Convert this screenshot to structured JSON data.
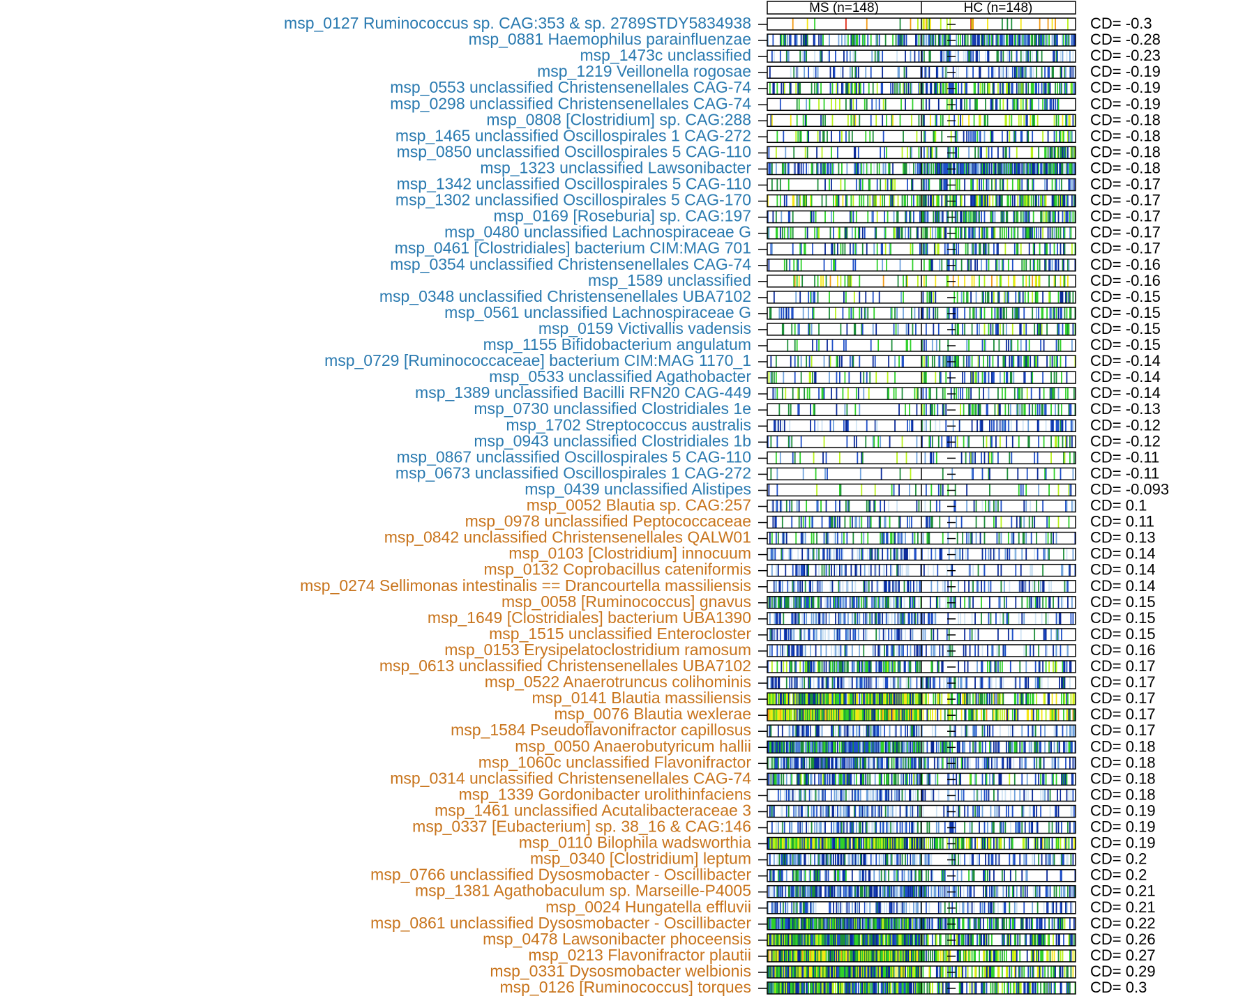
{
  "chart_data": {
    "type": "heatmap",
    "group_labels": [
      "MS (n=148)",
      "HC (n=148)"
    ],
    "value_prefix": "CD= ",
    "colors": {
      "negative_label": "#2a7ab0",
      "positive_label": "#c8741c",
      "scale": [
        "#ffffff",
        "#cfe3f4",
        "#6fa2dc",
        "#1f4fc8",
        "#0a2a9a",
        "#1d8f3a",
        "#2fd12a",
        "#b8f21a",
        "#f5e614",
        "#f29a14",
        "#e02a14"
      ]
    },
    "rows": [
      {
        "name": "msp_0127 Ruminococcus sp. CAG:353 & sp. 2789STDY5834938",
        "cd": "-0.3",
        "density": 0.12,
        "level": 0.7
      },
      {
        "name": "msp_0881 Haemophilus parainfluenzae",
        "cd": "-0.28",
        "density": 0.72,
        "level": 0.4
      },
      {
        "name": "msp_1473c unclassified",
        "cd": "-0.23",
        "density": 0.45,
        "level": 0.32
      },
      {
        "name": "msp_1219 Veillonella rogosae",
        "cd": "-0.19",
        "density": 0.42,
        "level": 0.34
      },
      {
        "name": "msp_0553 unclassified Christensenellales CAG-74",
        "cd": "-0.19",
        "density": 0.52,
        "level": 0.48
      },
      {
        "name": "msp_0298 unclassified Christensenellales CAG-74",
        "cd": "-0.19",
        "density": 0.35,
        "level": 0.46
      },
      {
        "name": "msp_0808 [Clostridium] sp. CAG:288",
        "cd": "-0.18",
        "density": 0.3,
        "level": 0.55
      },
      {
        "name": "msp_1465 unclassified Oscillospirales 1 CAG-272",
        "cd": "-0.18",
        "density": 0.3,
        "level": 0.46
      },
      {
        "name": "msp_0850 unclassified Oscillospirales 5 CAG-110",
        "cd": "-0.18",
        "density": 0.28,
        "level": 0.46
      },
      {
        "name": "msp_1323 unclassified Lawsonibacter",
        "cd": "-0.18",
        "density": 0.92,
        "level": 0.38
      },
      {
        "name": "msp_1342 unclassified Oscillospirales 5 CAG-110",
        "cd": "-0.17",
        "density": 0.38,
        "level": 0.46
      },
      {
        "name": "msp_1302 unclassified Oscillospirales 5 CAG-170",
        "cd": "-0.17",
        "density": 0.65,
        "level": 0.55
      },
      {
        "name": "msp_0169 [Roseburia] sp. CAG:197",
        "cd": "-0.17",
        "density": 0.52,
        "level": 0.44
      },
      {
        "name": "msp_0480 unclassified Lachnospiraceae G",
        "cd": "-0.17",
        "density": 0.52,
        "level": 0.46
      },
      {
        "name": "msp_0461 [Clostridiales] bacterium CIM:MAG 701",
        "cd": "-0.17",
        "density": 0.38,
        "level": 0.45
      },
      {
        "name": "msp_0354 unclassified Christensenellales CAG-74",
        "cd": "-0.16",
        "density": 0.26,
        "level": 0.44
      },
      {
        "name": "msp_1589 unclassified",
        "cd": "-0.16",
        "density": 0.3,
        "level": 0.68
      },
      {
        "name": "msp_0348 unclassified Christensenellales UBA7102",
        "cd": "-0.15",
        "density": 0.32,
        "level": 0.46
      },
      {
        "name": "msp_0561 unclassified Lachnospiraceae G",
        "cd": "-0.15",
        "density": 0.42,
        "level": 0.44
      },
      {
        "name": "msp_0159 Victivallis vadensis",
        "cd": "-0.15",
        "density": 0.28,
        "level": 0.46
      },
      {
        "name": "msp_1155 Bifidobacterium angulatum",
        "cd": "-0.15",
        "density": 0.16,
        "level": 0.4
      },
      {
        "name": "msp_0729 [Ruminococcaceae] bacterium CIM:MAG 1170_1",
        "cd": "-0.14",
        "density": 0.38,
        "level": 0.44
      },
      {
        "name": "msp_0533 unclassified Agathobacter",
        "cd": "-0.14",
        "density": 0.26,
        "level": 0.46
      },
      {
        "name": "msp_1389 unclassified Bacilli RFN20 CAG-449",
        "cd": "-0.14",
        "density": 0.3,
        "level": 0.44
      },
      {
        "name": "msp_0730 unclassified Clostridiales 1e",
        "cd": "-0.13",
        "density": 0.3,
        "level": 0.44
      },
      {
        "name": "msp_1702 Streptococcus australis",
        "cd": "-0.12",
        "density": 0.42,
        "level": 0.26
      },
      {
        "name": "msp_0943 unclassified Clostridiales 1b",
        "cd": "-0.12",
        "density": 0.24,
        "level": 0.46
      },
      {
        "name": "msp_0867 unclassified Oscillospirales 5 CAG-110",
        "cd": "-0.11",
        "density": 0.16,
        "level": 0.44
      },
      {
        "name": "msp_0673 unclassified Oscillospirales 1 CAG-272",
        "cd": "-0.11",
        "density": 0.14,
        "level": 0.42
      },
      {
        "name": "msp_0439 unclassified Alistipes",
        "cd": "-0.093",
        "density": 0.14,
        "level": 0.44
      },
      {
        "name": "msp_0052 Blautia sp. CAG:257",
        "cd": "0.1",
        "density": 0.26,
        "level": 0.36
      },
      {
        "name": "msp_0978 unclassified Peptococcaceae",
        "cd": "0.11",
        "density": 0.3,
        "level": 0.42
      },
      {
        "name": "msp_0842 unclassified Christensenellales QALW01",
        "cd": "0.13",
        "density": 0.34,
        "level": 0.4
      },
      {
        "name": "msp_0103 [Clostridium] innocuum",
        "cd": "0.14",
        "density": 0.52,
        "level": 0.26
      },
      {
        "name": "msp_0132 Coprobacillus cateniformis",
        "cd": "0.14",
        "density": 0.42,
        "level": 0.25
      },
      {
        "name": "msp_0274 Sellimonas intestinalis == Drancourtella massiliensis",
        "cd": "0.14",
        "density": 0.46,
        "level": 0.28
      },
      {
        "name": "msp_0058 [Ruminococcus] gnavus",
        "cd": "0.15",
        "density": 0.62,
        "level": 0.38
      },
      {
        "name": "msp_1649 [Clostridiales] bacterium UBA1390",
        "cd": "0.15",
        "density": 0.56,
        "level": 0.28
      },
      {
        "name": "msp_1515 unclassified Enterocloster",
        "cd": "0.15",
        "density": 0.46,
        "level": 0.26
      },
      {
        "name": "msp_0153 Erysipelatoclostridium ramosum",
        "cd": "0.16",
        "density": 0.5,
        "level": 0.26
      },
      {
        "name": "msp_0613 unclassified Christensenellales UBA7102",
        "cd": "0.17",
        "density": 0.55,
        "level": 0.46
      },
      {
        "name": "msp_0522 Anaerotruncus colihominis",
        "cd": "0.17",
        "density": 0.56,
        "level": 0.28
      },
      {
        "name": "msp_0141 Blautia massiliensis",
        "cd": "0.17",
        "density": 0.92,
        "level": 0.56
      },
      {
        "name": "msp_0076 Blautia wexlerae",
        "cd": "0.17",
        "density": 0.98,
        "level": 0.62
      },
      {
        "name": "msp_1584 Pseudoflavonifractor capillosus",
        "cd": "0.17",
        "density": 0.56,
        "level": 0.28
      },
      {
        "name": "msp_0050 Anaerobutyricum hallii",
        "cd": "0.18",
        "density": 0.95,
        "level": 0.4
      },
      {
        "name": "msp_1060c unclassified Flavonifractor",
        "cd": "0.18",
        "density": 0.82,
        "level": 0.34
      },
      {
        "name": "msp_0314 unclassified Christensenellales CAG-74",
        "cd": "0.18",
        "density": 0.55,
        "level": 0.44
      },
      {
        "name": "msp_1339 Gordonibacter urolithinfaciens",
        "cd": "0.18",
        "density": 0.52,
        "level": 0.26
      },
      {
        "name": "msp_1461 unclassified Acutalibacteraceae 3",
        "cd": "0.19",
        "density": 0.6,
        "level": 0.28
      },
      {
        "name": "msp_0337 [Eubacterium] sp. 38_16 & CAG:146",
        "cd": "0.19",
        "density": 0.58,
        "level": 0.32
      },
      {
        "name": "msp_0110 Bilophila wadsworthia",
        "cd": "0.19",
        "density": 0.98,
        "level": 0.56
      },
      {
        "name": "msp_0340 [Clostridium] leptum",
        "cd": "0.2",
        "density": 0.62,
        "level": 0.3
      },
      {
        "name": "msp_0766 unclassified Dysosmobacter - Oscillibacter",
        "cd": "0.2",
        "density": 0.5,
        "level": 0.4
      },
      {
        "name": "msp_1381 Agathobaculum sp. Marseille-P4005",
        "cd": "0.21",
        "density": 0.85,
        "level": 0.34
      },
      {
        "name": "msp_0024 Hungatella effluvii",
        "cd": "0.21",
        "density": 0.58,
        "level": 0.26
      },
      {
        "name": "msp_0861 unclassified Dysosmobacter - Oscillibacter",
        "cd": "0.22",
        "density": 0.96,
        "level": 0.44
      },
      {
        "name": "msp_0478 Lawsonibacter phoceensis",
        "cd": "0.26",
        "density": 0.96,
        "level": 0.5
      },
      {
        "name": "msp_0213 Flavonifractor plautii",
        "cd": "0.27",
        "density": 0.99,
        "level": 0.6
      },
      {
        "name": "msp_0331 Dysosmobacter welbionis",
        "cd": "0.29",
        "density": 0.98,
        "level": 0.56
      },
      {
        "name": "msp_0126 [Ruminococcus] torques",
        "cd": "0.3",
        "density": 0.9,
        "level": 0.48
      }
    ]
  }
}
